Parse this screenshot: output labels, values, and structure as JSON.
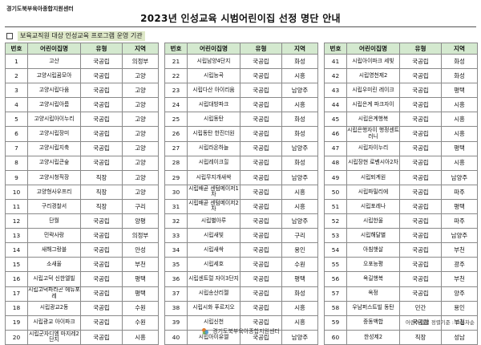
{
  "header": {
    "org": "경기도북부육아종합지원센터",
    "title": "2023년 인성교육 시범어린이집 선정 명단 안내",
    "subtitle": "보육교직원 대상 인성교육 프로그램 운영 기관"
  },
  "table": {
    "headers": [
      "번호",
      "어린이집명",
      "유형",
      "지역"
    ],
    "col1": [
      {
        "no": "1",
        "name": "고산",
        "type": "국공립",
        "region": "의정부"
      },
      {
        "no": "2",
        "name": "고양시립꿈모아",
        "type": "국공립",
        "region": "고양"
      },
      {
        "no": "3",
        "name": "고양시립다움",
        "type": "국공립",
        "region": "고양"
      },
      {
        "no": "4",
        "name": "고양시립아름",
        "type": "국공립",
        "region": "고양"
      },
      {
        "no": "5",
        "name": "고양시립아이누리",
        "type": "국공립",
        "region": "고양"
      },
      {
        "no": "6",
        "name": "고양시립장미",
        "type": "국공립",
        "region": "고양"
      },
      {
        "no": "7",
        "name": "고양시립지축",
        "type": "국공립",
        "region": "고양"
      },
      {
        "no": "8",
        "name": "고양시립큰숲",
        "type": "국공립",
        "region": "고양"
      },
      {
        "no": "9",
        "name": "고양시청직장",
        "type": "직장",
        "region": "고양"
      },
      {
        "no": "10",
        "name": "고양형사우프리",
        "type": "직장",
        "region": "고양"
      },
      {
        "no": "11",
        "name": "구리경찰서",
        "type": "직장",
        "region": "구리"
      },
      {
        "no": "12",
        "name": "단월",
        "type": "국공립",
        "region": "양평"
      },
      {
        "no": "13",
        "name": "민락사랑",
        "type": "국공립",
        "region": "의정부"
      },
      {
        "no": "14",
        "name": "새해그랑블",
        "type": "국공립",
        "region": "안성"
      },
      {
        "no": "15",
        "name": "소새울",
        "type": "국공립",
        "region": "부천"
      },
      {
        "no": "16",
        "name": "시립고덕 신한엘빌",
        "type": "국공립",
        "region": "평택"
      },
      {
        "no": "17",
        "name": "시립고덕파라곤 에듀포레",
        "type": "국공립",
        "region": "평택"
      },
      {
        "no": "18",
        "name": "시립광교2동",
        "type": "국공립",
        "region": "수원"
      },
      {
        "no": "19",
        "name": "시립광교 아이파크",
        "type": "국공립",
        "region": "수원"
      },
      {
        "no": "20",
        "name": "시립군자디엠 마지레2단지",
        "type": "국공립",
        "region": "시흥"
      }
    ],
    "col2": [
      {
        "no": "21",
        "name": "시립남양4단지",
        "type": "국공립",
        "region": "화성"
      },
      {
        "no": "22",
        "name": "시립능곡",
        "type": "국공립",
        "region": "시흥"
      },
      {
        "no": "23",
        "name": "시립다산 아이리움",
        "type": "국공립",
        "region": "남양주"
      },
      {
        "no": "24",
        "name": "시립대방파크",
        "type": "국공립",
        "region": "시흥"
      },
      {
        "no": "25",
        "name": "시립동탄",
        "type": "국공립",
        "region": "화성"
      },
      {
        "no": "26",
        "name": "시립동탄 한진더원",
        "type": "국공립",
        "region": "화성"
      },
      {
        "no": "27",
        "name": "시립라온하늘",
        "type": "국공립",
        "region": "남양주"
      },
      {
        "no": "28",
        "name": "시립레이크힐",
        "type": "국공립",
        "region": "화성"
      },
      {
        "no": "29",
        "name": "시립무지개새싹",
        "type": "국공립",
        "region": "남양주"
      },
      {
        "no": "30",
        "name": "시립배곧 센텀메이저1차",
        "type": "국공립",
        "region": "시흥"
      },
      {
        "no": "31",
        "name": "시립배곧 센텀메이저2차",
        "type": "국공립",
        "region": "시흥"
      },
      {
        "no": "32",
        "name": "시립별아루",
        "type": "국공립",
        "region": "남양주"
      },
      {
        "no": "33",
        "name": "시립새빛",
        "type": "국공립",
        "region": "구리"
      },
      {
        "no": "34",
        "name": "시립새싹",
        "type": "국공립",
        "region": "용인"
      },
      {
        "no": "35",
        "name": "시립세호",
        "type": "국공립",
        "region": "수원"
      },
      {
        "no": "36",
        "name": "시립센트럴 자이3단지",
        "type": "국공립",
        "region": "평택"
      },
      {
        "no": "37",
        "name": "시립송산리젤",
        "type": "국공립",
        "region": "화성"
      },
      {
        "no": "38",
        "name": "시립시화 푸르지오",
        "type": "국공립",
        "region": "시흥"
      },
      {
        "no": "39",
        "name": "시립신천",
        "type": "국공립",
        "region": "시흥"
      },
      {
        "no": "40",
        "name": "시립아이유엘",
        "type": "국공립",
        "region": "남양주"
      }
    ],
    "col3": [
      {
        "no": "41",
        "name": "시립아이파크 세빛",
        "type": "국공립",
        "region": "화성"
      },
      {
        "no": "42",
        "name": "시립영천제2",
        "type": "국공립",
        "region": "화성"
      },
      {
        "no": "43",
        "name": "시립우미린 레이크",
        "type": "국공립",
        "region": "평택"
      },
      {
        "no": "44",
        "name": "시립은계 파크자이",
        "type": "국공립",
        "region": "시흥"
      },
      {
        "no": "45",
        "name": "시립은계행복",
        "type": "국공립",
        "region": "시흥"
      },
      {
        "no": "46",
        "name": "시립은행자이 행정센트러니",
        "type": "국공립",
        "region": "시흥"
      },
      {
        "no": "47",
        "name": "시립자이누리",
        "type": "국공립",
        "region": "평택"
      },
      {
        "no": "48",
        "name": "시립장현 로벤시아2차",
        "type": "국공립",
        "region": "시흥"
      },
      {
        "no": "49",
        "name": "시립퇴계원",
        "type": "국공립",
        "region": "남양주"
      },
      {
        "no": "50",
        "name": "시립파밀리에",
        "type": "국공립",
        "region": "파주"
      },
      {
        "no": "51",
        "name": "시립포레나",
        "type": "국공립",
        "region": "평택"
      },
      {
        "no": "52",
        "name": "시립한울",
        "type": "국공립",
        "region": "파주"
      },
      {
        "no": "53",
        "name": "시립해달별",
        "type": "국공립",
        "region": "남양주"
      },
      {
        "no": "54",
        "name": "아침햇살",
        "type": "국공립",
        "region": "부천"
      },
      {
        "no": "55",
        "name": "오포능평",
        "type": "국공립",
        "region": "광주"
      },
      {
        "no": "56",
        "name": "옥길행복",
        "type": "국공립",
        "region": "부천"
      },
      {
        "no": "57",
        "name": "옥정",
        "type": "국공립",
        "region": "양주"
      },
      {
        "no": "58",
        "name": "우남퍼스트빌 동탄",
        "type": "민간",
        "region": "용인"
      },
      {
        "no": "59",
        "name": "중동백합",
        "type": "국공립",
        "region": "부천"
      },
      {
        "no": "60",
        "name": "한성제2",
        "type": "직장",
        "region": "성남"
      }
    ]
  },
  "footnote": "어린이집명 정렬기준 : 오름차순",
  "footer": {
    "org": "경기도북부육아종합지원센터"
  }
}
